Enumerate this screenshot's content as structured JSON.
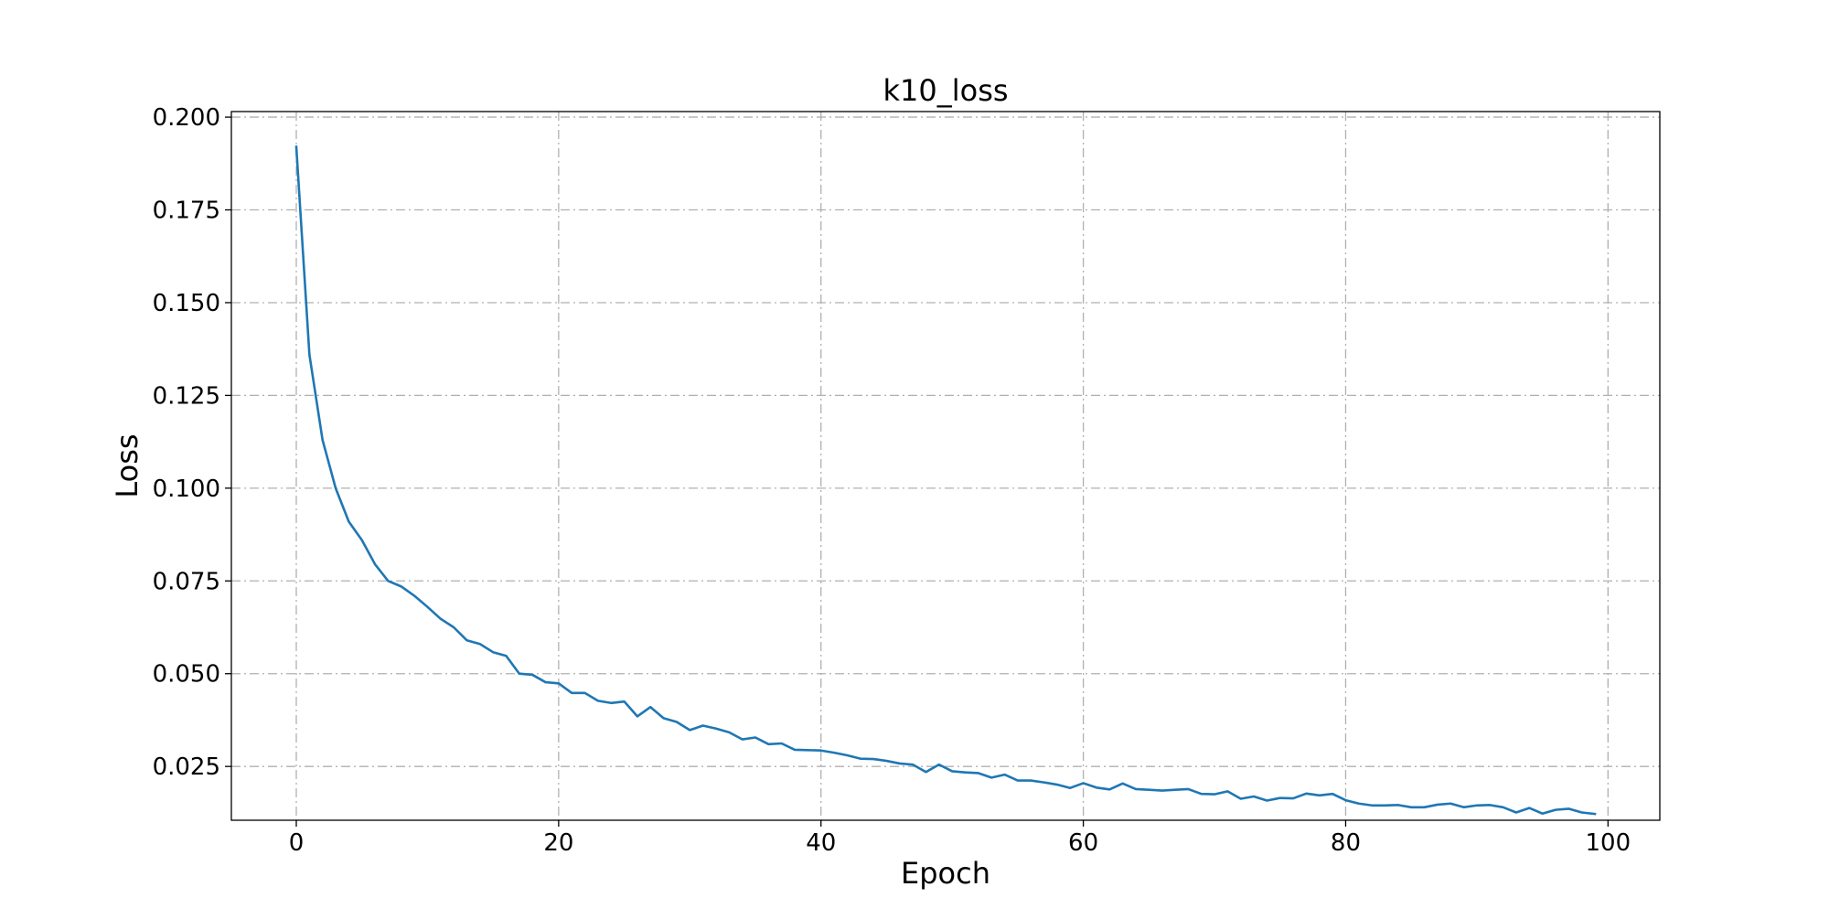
{
  "chart_data": {
    "type": "line",
    "title": "k10_loss",
    "xlabel": "Epoch",
    "ylabel": "Loss",
    "xlim": [
      -4.95,
      103.95
    ],
    "ylim": [
      0.0105,
      0.2015
    ],
    "xticks": [
      0,
      20,
      40,
      60,
      80,
      100
    ],
    "xtick_labels": [
      "0",
      "20",
      "40",
      "60",
      "80",
      "100"
    ],
    "yticks": [
      0.025,
      0.05,
      0.075,
      0.1,
      0.125,
      0.15,
      0.175,
      0.2
    ],
    "ytick_labels": [
      "0.025",
      "0.050",
      "0.075",
      "0.100",
      "0.125",
      "0.150",
      "0.175",
      "0.200"
    ],
    "grid": true,
    "color": "#1f77b4",
    "series": [
      {
        "name": "k10_loss",
        "x": [
          0,
          1,
          2,
          3,
          4,
          5,
          6,
          7,
          8,
          9,
          10,
          11,
          12,
          13,
          14,
          15,
          16,
          17,
          18,
          19,
          20,
          21,
          22,
          23,
          24,
          25,
          26,
          27,
          28,
          29,
          30,
          31,
          32,
          33,
          34,
          35,
          36,
          37,
          38,
          39,
          40,
          41,
          42,
          43,
          44,
          45,
          46,
          47,
          48,
          49,
          50,
          51,
          52,
          53,
          54,
          55,
          56,
          57,
          58,
          59,
          60,
          61,
          62,
          63,
          64,
          65,
          66,
          67,
          68,
          69,
          70,
          71,
          72,
          73,
          74,
          75,
          76,
          77,
          78,
          79,
          80,
          81,
          82,
          83,
          84,
          85,
          86,
          87,
          88,
          89,
          90,
          91,
          92,
          93,
          94,
          95,
          96,
          97,
          98,
          99
        ],
        "values": [
          0.192,
          0.136,
          0.113,
          0.1,
          0.091,
          0.086,
          0.0795,
          0.075,
          0.0735,
          0.071,
          0.068,
          0.0648,
          0.0625,
          0.059,
          0.058,
          0.0558,
          0.0548,
          0.05,
          0.0497,
          0.0477,
          0.0474,
          0.0448,
          0.0448,
          0.0427,
          0.0421,
          0.0425,
          0.0385,
          0.041,
          0.038,
          0.037,
          0.0348,
          0.036,
          0.0352,
          0.0342,
          0.0323,
          0.0328,
          0.031,
          0.0312,
          0.0295,
          0.0294,
          0.0293,
          0.0287,
          0.028,
          0.0271,
          0.027,
          0.0265,
          0.0258,
          0.0255,
          0.0235,
          0.0255,
          0.0237,
          0.0234,
          0.0232,
          0.022,
          0.0228,
          0.0212,
          0.0212,
          0.0207,
          0.0201,
          0.0192,
          0.0205,
          0.0193,
          0.0188,
          0.0204,
          0.0189,
          0.0187,
          0.0185,
          0.0187,
          0.0189,
          0.0176,
          0.0175,
          0.0183,
          0.0163,
          0.0169,
          0.0158,
          0.0165,
          0.0164,
          0.0177,
          0.0172,
          0.0176,
          0.0159,
          0.015,
          0.0145,
          0.0145,
          0.0146,
          0.014,
          0.014,
          0.0147,
          0.015,
          0.014,
          0.0145,
          0.0146,
          0.014,
          0.0126,
          0.0138,
          0.0123,
          0.0133,
          0.0136,
          0.0126,
          0.0122
        ]
      }
    ]
  }
}
